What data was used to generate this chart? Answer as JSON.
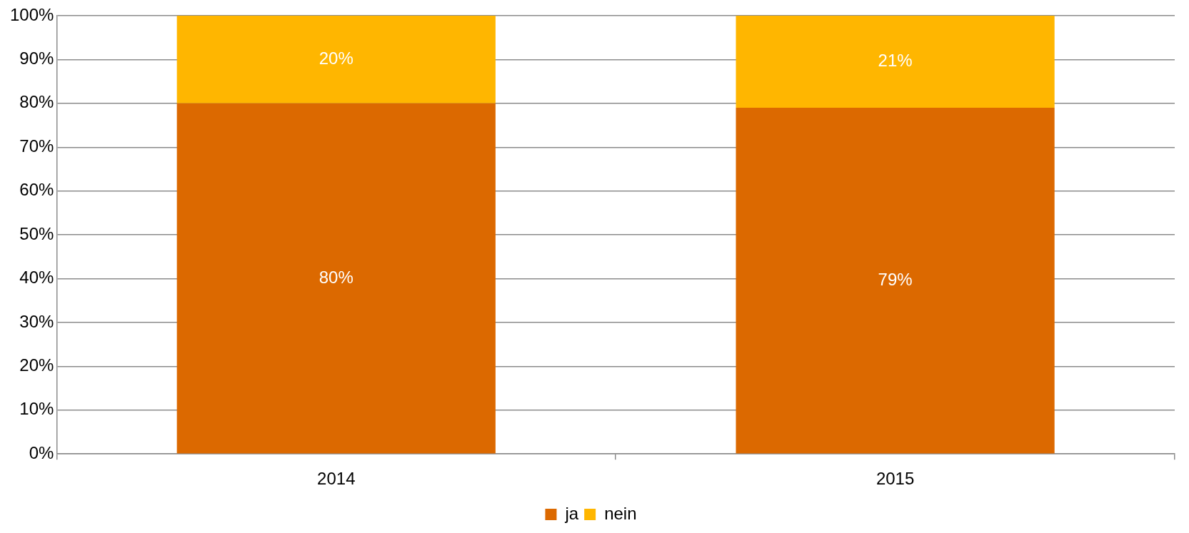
{
  "chart_data": {
    "type": "bar",
    "stacked": true,
    "categories": [
      "2014",
      "2015"
    ],
    "series": [
      {
        "name": "ja",
        "color": "#dc6900",
        "values": [
          80,
          79
        ],
        "value_labels": [
          "80%",
          "79%"
        ]
      },
      {
        "name": "nein",
        "color": "#ffb600",
        "values": [
          20,
          21
        ],
        "value_labels": [
          "20%",
          "21%"
        ]
      }
    ],
    "ylim": [
      0,
      100
    ],
    "yticks": [
      {
        "value": 0,
        "label": "0%"
      },
      {
        "value": 10,
        "label": "10%"
      },
      {
        "value": 20,
        "label": "20%"
      },
      {
        "value": 30,
        "label": "30%"
      },
      {
        "value": 40,
        "label": "40%"
      },
      {
        "value": 50,
        "label": "50%"
      },
      {
        "value": 60,
        "label": "60%"
      },
      {
        "value": 70,
        "label": "70%"
      },
      {
        "value": 80,
        "label": "80%"
      },
      {
        "value": 90,
        "label": "90%"
      },
      {
        "value": 100,
        "label": "100%"
      }
    ],
    "grid": "y",
    "legend": "bottom"
  }
}
